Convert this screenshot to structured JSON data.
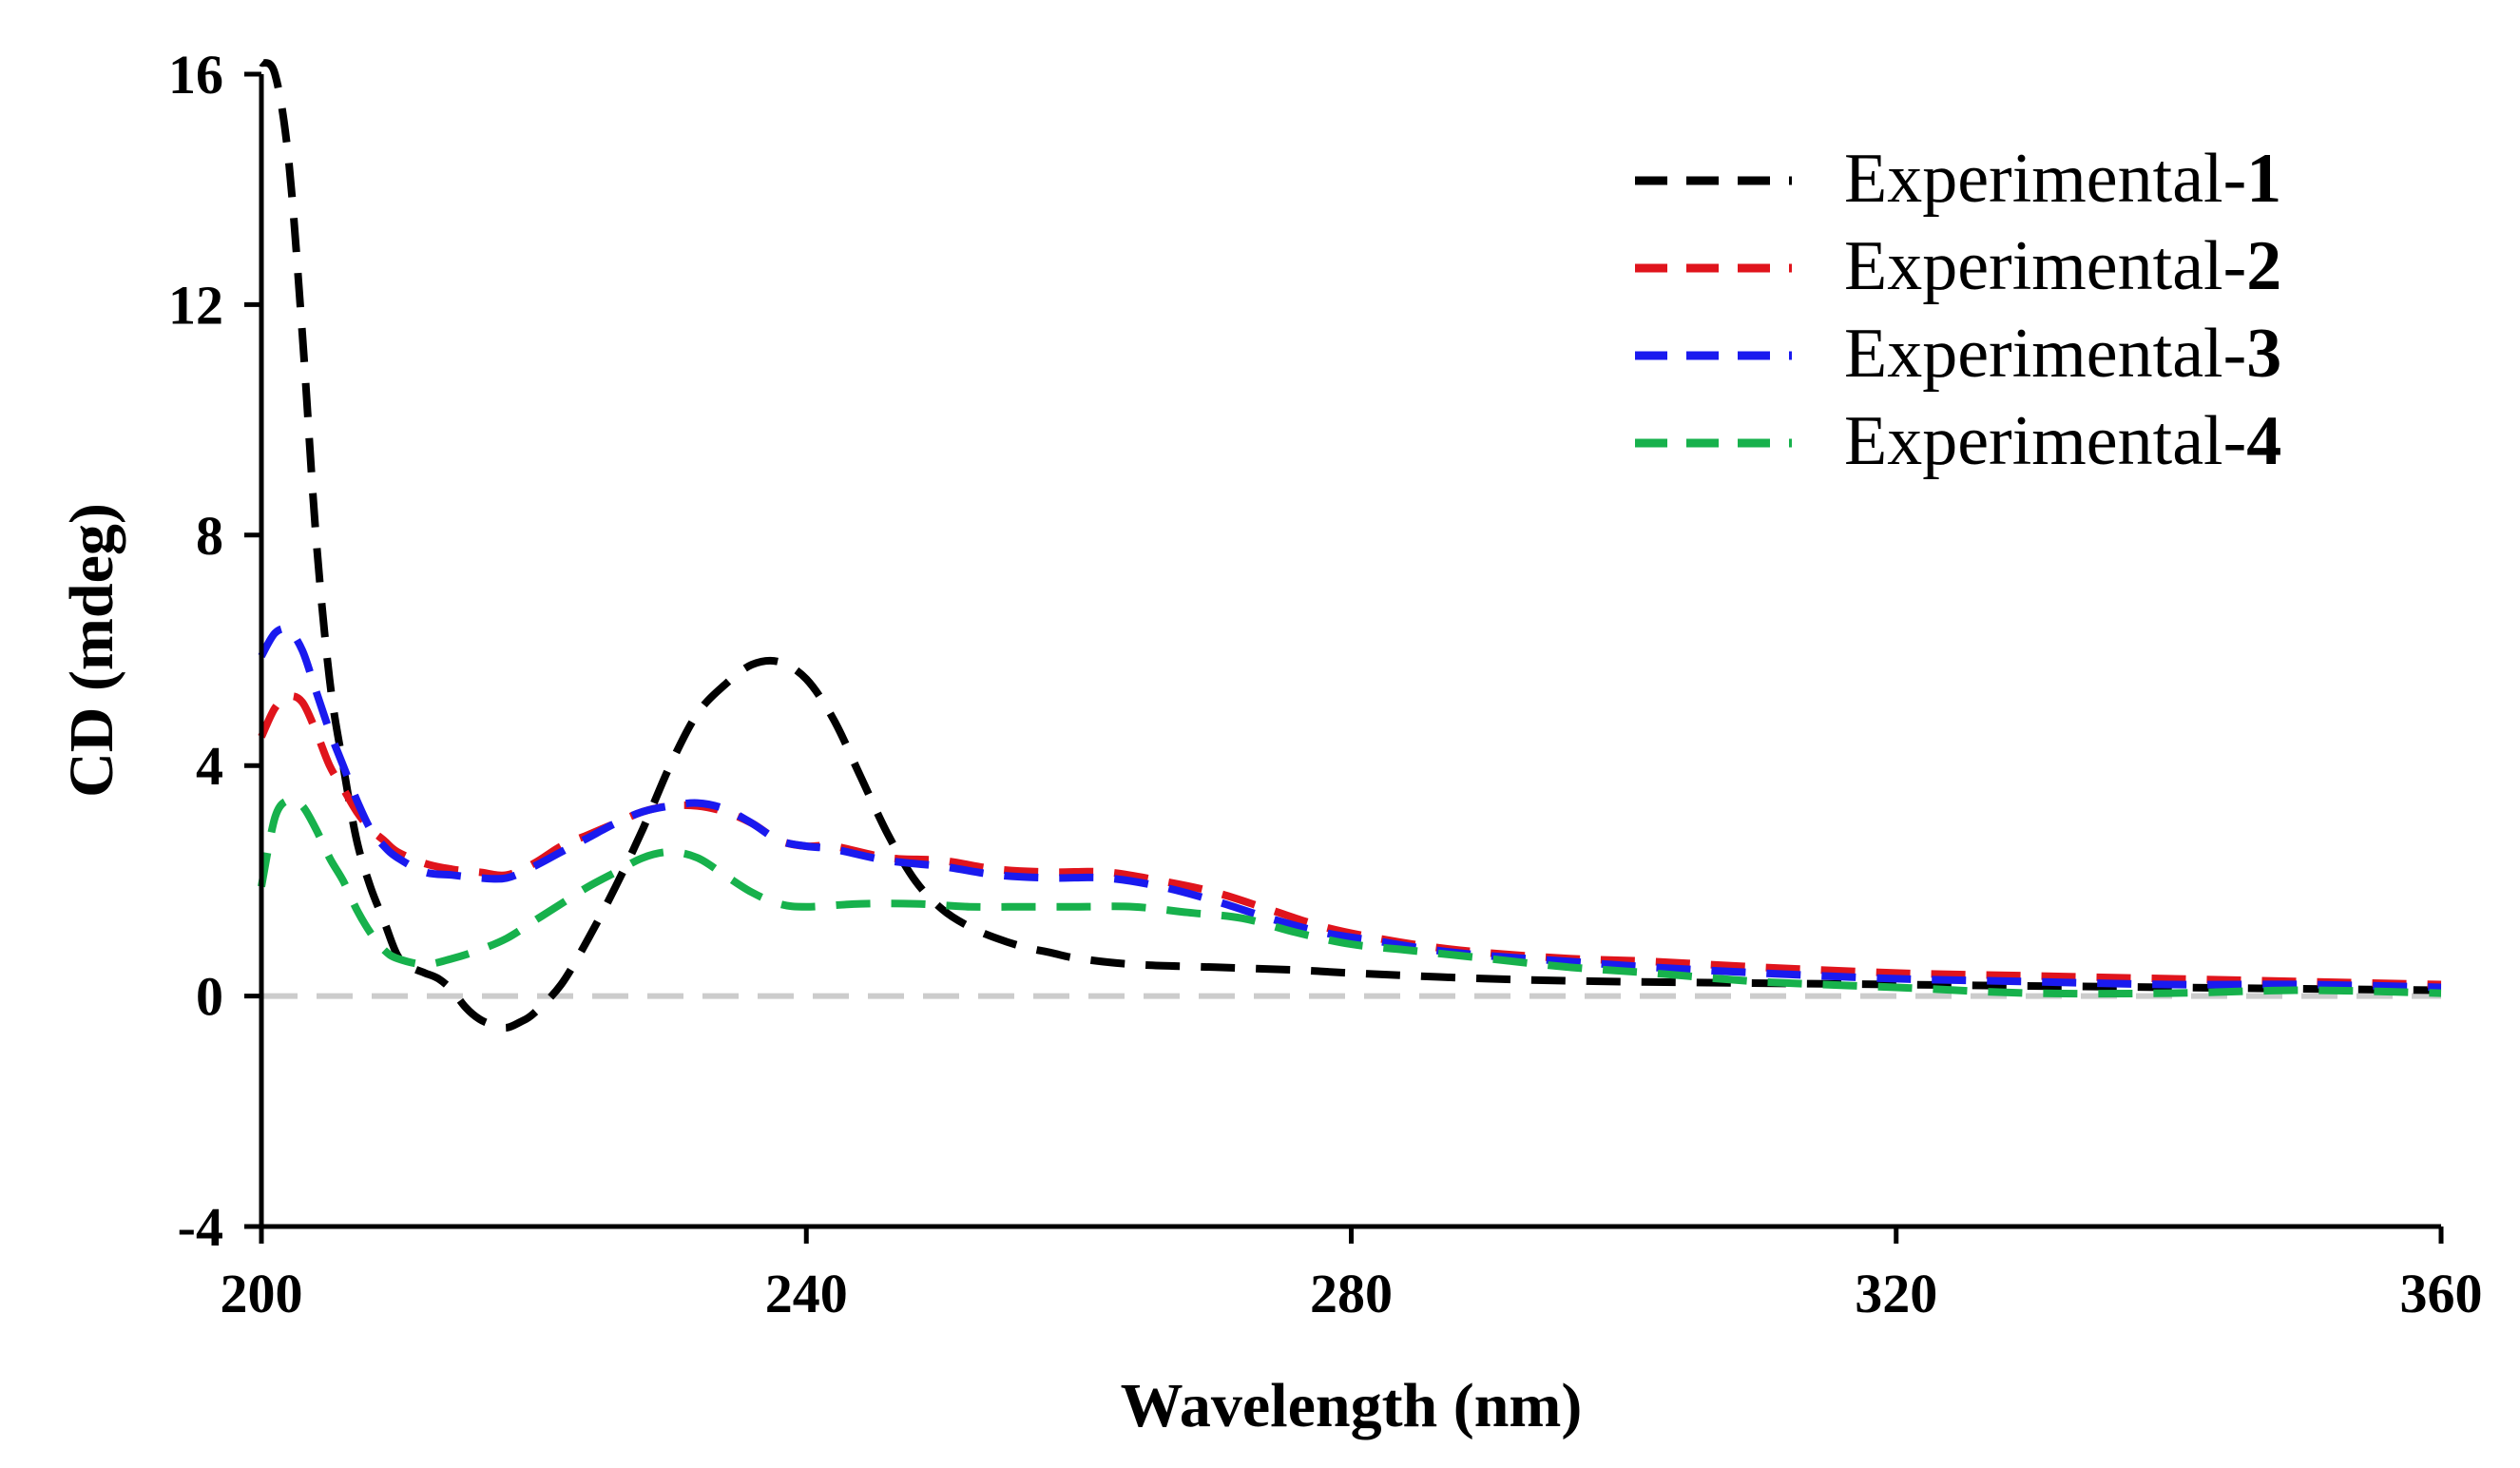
{
  "chart_data": {
    "type": "line",
    "title": "",
    "xlabel": "Wavelength (nm)",
    "ylabel": "CD (mdeg)",
    "xlim": [
      200,
      360
    ],
    "ylim": [
      -4,
      16
    ],
    "x_ticks": [
      "200",
      "240",
      "280",
      "320",
      "360"
    ],
    "y_ticks": [
      "-4",
      "0",
      "4",
      "8",
      "12",
      "16"
    ],
    "grid": false,
    "legend_position": "top-right",
    "zero_line": true,
    "colors": {
      "axis": "#000000",
      "zero_line": "#cccccc"
    },
    "series": [
      {
        "name": "Experimental-1",
        "label_prefix": "Experimental-",
        "label_num": "1",
        "color": "#000000",
        "dashed": true,
        "points": [
          [
            200,
            16.2
          ],
          [
            201,
            16.0
          ],
          [
            202,
            14.5
          ],
          [
            203,
            11.5
          ],
          [
            204,
            8.0
          ],
          [
            205,
            5.5
          ],
          [
            206,
            4.0
          ],
          [
            207,
            2.7
          ],
          [
            208,
            1.9
          ],
          [
            209,
            1.3
          ],
          [
            210,
            0.7
          ],
          [
            211,
            0.5
          ],
          [
            212,
            0.4
          ],
          [
            213,
            0.3
          ],
          [
            214,
            0.1
          ],
          [
            215,
            -0.2
          ],
          [
            216,
            -0.4
          ],
          [
            217,
            -0.5
          ],
          [
            218,
            -0.55
          ],
          [
            219,
            -0.45
          ],
          [
            220,
            -0.3
          ],
          [
            222,
            0.2
          ],
          [
            224,
            1.0
          ],
          [
            226,
            1.9
          ],
          [
            228,
            2.9
          ],
          [
            230,
            4.0
          ],
          [
            232,
            4.9
          ],
          [
            234,
            5.4
          ],
          [
            236,
            5.75
          ],
          [
            238,
            5.8
          ],
          [
            240,
            5.5
          ],
          [
            242,
            4.8
          ],
          [
            244,
            3.8
          ],
          [
            246,
            2.8
          ],
          [
            248,
            2.0
          ],
          [
            250,
            1.5
          ],
          [
            252,
            1.2
          ],
          [
            254,
            1.0
          ],
          [
            256,
            0.85
          ],
          [
            258,
            0.75
          ],
          [
            260,
            0.65
          ],
          [
            264,
            0.55
          ],
          [
            270,
            0.5
          ],
          [
            276,
            0.45
          ],
          [
            280,
            0.4
          ],
          [
            290,
            0.3
          ],
          [
            300,
            0.25
          ],
          [
            320,
            0.2
          ],
          [
            340,
            0.15
          ],
          [
            360,
            0.1
          ]
        ]
      },
      {
        "name": "Experimental-2",
        "label_prefix": "Experimental-",
        "label_num": "2",
        "color": "#e0141c",
        "dashed": true,
        "points": [
          [
            200,
            4.5
          ],
          [
            201,
            5.0
          ],
          [
            202,
            5.2
          ],
          [
            203,
            5.1
          ],
          [
            204,
            4.6
          ],
          [
            205,
            4.0
          ],
          [
            206,
            3.6
          ],
          [
            207,
            3.2
          ],
          [
            208,
            2.9
          ],
          [
            209,
            2.7
          ],
          [
            210,
            2.5
          ],
          [
            212,
            2.3
          ],
          [
            214,
            2.2
          ],
          [
            216,
            2.15
          ],
          [
            218,
            2.1
          ],
          [
            220,
            2.3
          ],
          [
            222,
            2.6
          ],
          [
            224,
            2.8
          ],
          [
            226,
            3.0
          ],
          [
            228,
            3.2
          ],
          [
            230,
            3.3
          ],
          [
            232,
            3.3
          ],
          [
            234,
            3.2
          ],
          [
            236,
            3.0
          ],
          [
            238,
            2.7
          ],
          [
            240,
            2.6
          ],
          [
            242,
            2.6
          ],
          [
            246,
            2.4
          ],
          [
            250,
            2.35
          ],
          [
            254,
            2.2
          ],
          [
            258,
            2.15
          ],
          [
            262,
            2.15
          ],
          [
            266,
            2.0
          ],
          [
            270,
            1.8
          ],
          [
            274,
            1.5
          ],
          [
            278,
            1.2
          ],
          [
            282,
            1.0
          ],
          [
            286,
            0.85
          ],
          [
            290,
            0.75
          ],
          [
            296,
            0.65
          ],
          [
            302,
            0.6
          ],
          [
            310,
            0.5
          ],
          [
            320,
            0.4
          ],
          [
            330,
            0.35
          ],
          [
            340,
            0.3
          ],
          [
            350,
            0.25
          ],
          [
            360,
            0.2
          ]
        ]
      },
      {
        "name": "Experimental-3",
        "label_prefix": "Experimental-",
        "label_num": "3",
        "color": "#1a1aef",
        "dashed": true,
        "points": [
          [
            200,
            5.9
          ],
          [
            201,
            6.3
          ],
          [
            202,
            6.35
          ],
          [
            203,
            6.0
          ],
          [
            204,
            5.3
          ],
          [
            205,
            4.6
          ],
          [
            206,
            4.0
          ],
          [
            207,
            3.4
          ],
          [
            208,
            2.9
          ],
          [
            209,
            2.6
          ],
          [
            210,
            2.4
          ],
          [
            212,
            2.15
          ],
          [
            214,
            2.1
          ],
          [
            216,
            2.05
          ],
          [
            218,
            2.05
          ],
          [
            220,
            2.25
          ],
          [
            222,
            2.5
          ],
          [
            224,
            2.75
          ],
          [
            226,
            3.0
          ],
          [
            228,
            3.2
          ],
          [
            230,
            3.3
          ],
          [
            232,
            3.35
          ],
          [
            234,
            3.25
          ],
          [
            236,
            3.0
          ],
          [
            238,
            2.7
          ],
          [
            240,
            2.6
          ],
          [
            242,
            2.55
          ],
          [
            246,
            2.35
          ],
          [
            250,
            2.25
          ],
          [
            254,
            2.1
          ],
          [
            258,
            2.05
          ],
          [
            262,
            2.05
          ],
          [
            266,
            1.9
          ],
          [
            270,
            1.65
          ],
          [
            274,
            1.35
          ],
          [
            278,
            1.1
          ],
          [
            282,
            0.95
          ],
          [
            286,
            0.8
          ],
          [
            290,
            0.7
          ],
          [
            296,
            0.6
          ],
          [
            302,
            0.5
          ],
          [
            310,
            0.4
          ],
          [
            320,
            0.3
          ],
          [
            330,
            0.25
          ],
          [
            340,
            0.2
          ],
          [
            350,
            0.2
          ],
          [
            360,
            0.15
          ]
        ]
      },
      {
        "name": "Experimental-4",
        "label_prefix": "Experimental-",
        "label_num": "4",
        "color": "#17b14c",
        "dashed": true,
        "points": [
          [
            200,
            1.9
          ],
          [
            201,
            3.1
          ],
          [
            202,
            3.4
          ],
          [
            203,
            3.3
          ],
          [
            204,
            2.9
          ],
          [
            205,
            2.4
          ],
          [
            206,
            2.0
          ],
          [
            207,
            1.5
          ],
          [
            208,
            1.1
          ],
          [
            209,
            0.8
          ],
          [
            210,
            0.65
          ],
          [
            212,
            0.55
          ],
          [
            214,
            0.65
          ],
          [
            216,
            0.8
          ],
          [
            218,
            1.0
          ],
          [
            220,
            1.3
          ],
          [
            222,
            1.6
          ],
          [
            224,
            1.9
          ],
          [
            226,
            2.15
          ],
          [
            228,
            2.4
          ],
          [
            230,
            2.5
          ],
          [
            232,
            2.4
          ],
          [
            234,
            2.1
          ],
          [
            236,
            1.8
          ],
          [
            238,
            1.6
          ],
          [
            240,
            1.55
          ],
          [
            244,
            1.6
          ],
          [
            248,
            1.6
          ],
          [
            252,
            1.55
          ],
          [
            256,
            1.55
          ],
          [
            260,
            1.55
          ],
          [
            264,
            1.55
          ],
          [
            268,
            1.45
          ],
          [
            272,
            1.35
          ],
          [
            276,
            1.1
          ],
          [
            280,
            0.9
          ],
          [
            284,
            0.8
          ],
          [
            290,
            0.65
          ],
          [
            296,
            0.5
          ],
          [
            302,
            0.4
          ],
          [
            310,
            0.25
          ],
          [
            320,
            0.15
          ],
          [
            330,
            0.05
          ],
          [
            340,
            0.05
          ],
          [
            350,
            0.1
          ],
          [
            360,
            0.05
          ]
        ]
      }
    ]
  }
}
